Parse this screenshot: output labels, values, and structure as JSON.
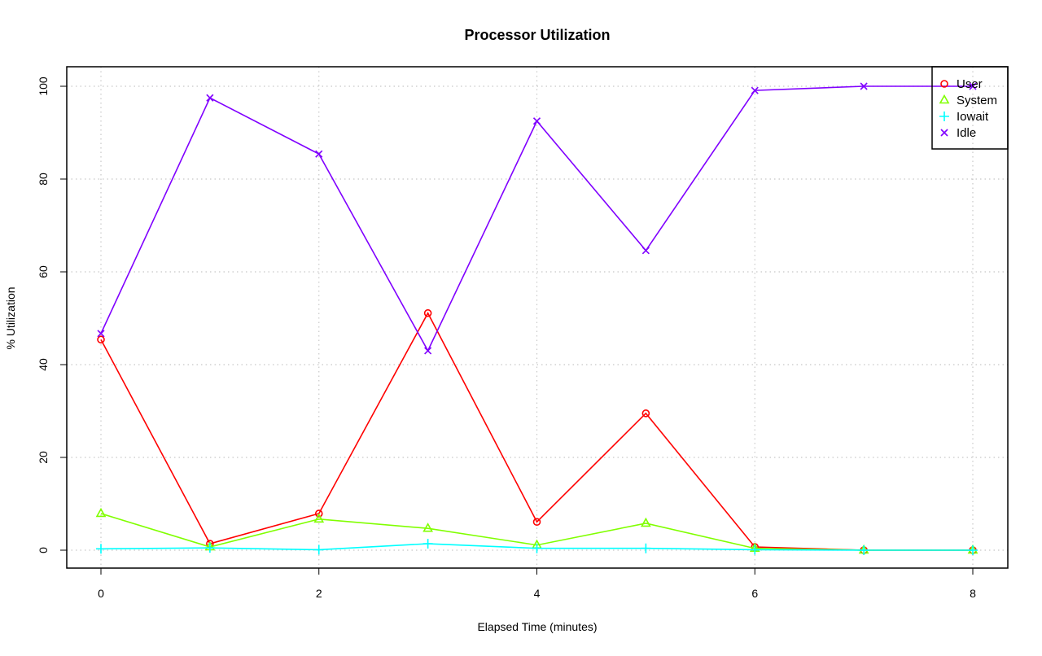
{
  "chart_data": {
    "type": "line",
    "title": "Processor Utilization",
    "xlabel": "Elapsed Time (minutes)",
    "ylabel": "% Utilization",
    "x": [
      0,
      1,
      2,
      3,
      4,
      5,
      6,
      7,
      8
    ],
    "xlim": [
      0,
      8
    ],
    "ylim": [
      0,
      100
    ],
    "xticks": [
      0,
      2,
      4,
      6,
      8
    ],
    "yticks": [
      0,
      20,
      40,
      60,
      80,
      100
    ],
    "grid": true,
    "legend_position": "top-right",
    "series": [
      {
        "name": "User",
        "color": "#ff0000",
        "marker": "circle",
        "values": [
          45.4,
          1.4,
          7.9,
          51.1,
          6.1,
          29.5,
          0.7,
          0,
          0
        ]
      },
      {
        "name": "System",
        "color": "#80ff00",
        "marker": "triangle",
        "values": [
          7.9,
          0.7,
          6.7,
          4.7,
          1.1,
          5.8,
          0.4,
          0,
          0
        ]
      },
      {
        "name": "Iowait",
        "color": "#00ffff",
        "marker": "plus",
        "values": [
          0.3,
          0.5,
          0.1,
          1.4,
          0.4,
          0.4,
          0.1,
          0,
          0
        ]
      },
      {
        "name": "Idle",
        "color": "#8000ff",
        "marker": "cross",
        "values": [
          46.7,
          97.5,
          85.4,
          43.0,
          92.5,
          64.6,
          99.1,
          100,
          100
        ]
      }
    ]
  }
}
